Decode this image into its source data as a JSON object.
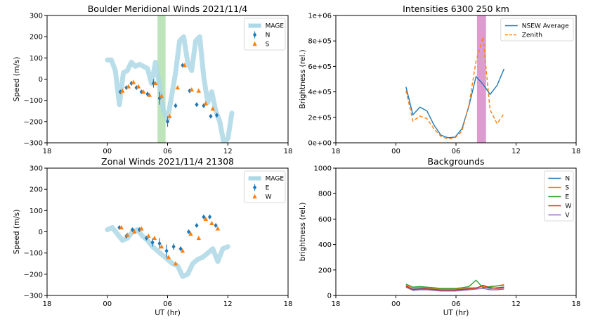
{
  "chart_data": [
    {
      "type": "line",
      "title": "Boulder Meridional Winds 2021/11/4",
      "xlabel": "",
      "ylabel": "Speed (m/s)",
      "xlim": [
        18,
        42
      ],
      "ylim": [
        -300,
        300
      ],
      "xticks": [
        18,
        24,
        30,
        36,
        42
      ],
      "xtick_labels": [
        "18",
        "00",
        "06",
        "12",
        "18"
      ],
      "yticks": [
        -300,
        -200,
        -100,
        0,
        100,
        200,
        300
      ],
      "ytick_labels": [
        "−300",
        "−200",
        "−100",
        "0",
        "100",
        "200",
        "300"
      ],
      "legend_position": "top-right",
      "shaded_span": {
        "x0": 29.0,
        "x1": 29.8,
        "color": "#b7e2b3"
      },
      "series": [
        {
          "name": "MAGE",
          "kind": "band",
          "color": "#add8e6",
          "x": [
            24.0,
            24.4,
            24.8,
            25.2,
            25.6,
            26.0,
            26.4,
            26.8,
            27.2,
            27.6,
            28.0,
            28.4,
            28.8,
            29.2,
            29.6,
            30.0,
            30.4,
            30.8,
            31.2,
            31.6,
            32.0,
            32.4,
            32.8,
            33.2,
            33.6,
            34.0,
            34.4,
            34.8,
            35.2,
            35.6,
            36.0,
            36.4
          ],
          "y": [
            90,
            90,
            40,
            -120,
            30,
            40,
            80,
            60,
            70,
            60,
            50,
            -20,
            80,
            -30,
            -150,
            -190,
            -80,
            30,
            180,
            200,
            80,
            40,
            180,
            200,
            10,
            -110,
            -60,
            -150,
            -200,
            -300,
            -280,
            -160
          ]
        },
        {
          "name": "N",
          "kind": "points",
          "marker": "diamond",
          "color": "#1f77b4",
          "x": [
            25.3,
            25.9,
            26.4,
            26.9,
            27.4,
            28.0,
            28.6,
            29.2,
            30.0,
            30.8,
            31.5,
            32.2,
            32.9,
            33.6,
            34.3,
            34.9
          ],
          "y": [
            -60,
            -40,
            -20,
            -40,
            -60,
            -70,
            -20,
            -90,
            -200,
            -125,
            65,
            -55,
            -120,
            -125,
            -175,
            -170
          ],
          "yerr": [
            8,
            8,
            8,
            8,
            8,
            10,
            20,
            30,
            25,
            10,
            8,
            8,
            8,
            8,
            8,
            8
          ]
        },
        {
          "name": "S",
          "kind": "points",
          "marker": "triangle",
          "color": "#ff7f0e",
          "x": [
            25.5,
            26.1,
            26.6,
            27.1,
            27.6,
            28.2,
            28.8,
            29.4,
            30.2,
            31.0,
            31.7,
            32.4,
            33.1,
            33.8,
            34.5
          ],
          "y": [
            -55,
            -35,
            -15,
            -35,
            -60,
            -75,
            -20,
            -80,
            -175,
            -40,
            65,
            -50,
            -55,
            -115,
            -140
          ]
        }
      ]
    },
    {
      "type": "line",
      "title": "Intensities 6300  250 km",
      "xlabel": "",
      "ylabel": "Brightness (rel.)",
      "xlim": [
        18,
        42
      ],
      "ylim": [
        0,
        1000000
      ],
      "xticks": [
        18,
        24,
        30,
        36,
        42
      ],
      "xtick_labels": [
        "18",
        "00",
        "06",
        "12",
        "18"
      ],
      "yticks": [
        0,
        200000,
        400000,
        600000,
        800000,
        1000000
      ],
      "ytick_labels": [
        "0e+00",
        "2e+05",
        "4e+05",
        "6e+05",
        "8e+05",
        "1e+06"
      ],
      "legend_position": "top-right",
      "shaded_span": {
        "x0": 32.1,
        "x1": 33.0,
        "color": "#d991cb"
      },
      "series": [
        {
          "name": "NSEW Average",
          "kind": "line",
          "color": "#1f77b4",
          "dash": "solid",
          "x": [
            25.0,
            25.7,
            26.4,
            27.1,
            27.8,
            28.5,
            29.2,
            29.9,
            30.6,
            31.3,
            32.0,
            32.7,
            33.4,
            34.1,
            34.8
          ],
          "y": [
            440000,
            220000,
            280000,
            250000,
            140000,
            60000,
            40000,
            45000,
            110000,
            290000,
            520000,
            460000,
            380000,
            450000,
            580000
          ]
        },
        {
          "name": "Zenith",
          "kind": "line",
          "color": "#ff7f0e",
          "dash": "dashed",
          "x": [
            25.0,
            25.7,
            26.4,
            27.1,
            27.8,
            28.5,
            29.2,
            29.9,
            30.6,
            31.3,
            32.0,
            32.7,
            33.4,
            34.1,
            34.8
          ],
          "y": [
            410000,
            170000,
            210000,
            190000,
            110000,
            50000,
            30000,
            40000,
            90000,
            300000,
            640000,
            830000,
            260000,
            150000,
            230000
          ]
        }
      ]
    },
    {
      "type": "line",
      "title": "Zonal Winds 2021/11/4 21308",
      "xlabel": "UT (hr)",
      "ylabel": "Speed (m/s)",
      "xlim": [
        18,
        42
      ],
      "ylim": [
        -300,
        300
      ],
      "xticks": [
        18,
        24,
        30,
        36,
        42
      ],
      "xtick_labels": [
        "18",
        "00",
        "06",
        "12",
        "18"
      ],
      "yticks": [
        -300,
        -200,
        -100,
        0,
        100,
        200,
        300
      ],
      "ytick_labels": [
        "−300",
        "−200",
        "−100",
        "0",
        "100",
        "200",
        "300"
      ],
      "legend_position": "top-right",
      "series": [
        {
          "name": "MAGE",
          "kind": "band",
          "color": "#add8e6",
          "x": [
            24.0,
            24.5,
            25.0,
            25.5,
            26.0,
            26.5,
            27.0,
            27.5,
            28.0,
            28.5,
            29.0,
            29.5,
            30.0,
            30.5,
            31.0,
            31.5,
            32.0,
            32.5,
            33.0,
            33.5,
            34.0,
            34.5,
            35.0,
            35.5,
            36.0
          ],
          "y": [
            10,
            20,
            -10,
            -40,
            -30,
            0,
            10,
            -20,
            -40,
            -70,
            -90,
            -110,
            -130,
            -150,
            -160,
            -210,
            -200,
            -150,
            -130,
            -120,
            -100,
            -80,
            -140,
            -80,
            -70
          ]
        },
        {
          "name": "E",
          "kind": "points",
          "marker": "diamond",
          "color": "#1f77b4",
          "x": [
            25.2,
            25.9,
            26.5,
            27.2,
            27.9,
            28.5,
            29.2,
            29.9,
            30.6,
            31.3,
            32.1,
            32.9,
            33.6,
            34.2,
            34.8
          ],
          "y": [
            20,
            -20,
            10,
            10,
            -30,
            -50,
            -55,
            -90,
            -70,
            -80,
            0,
            30,
            70,
            70,
            30
          ],
          "yerr": [
            8,
            10,
            10,
            10,
            10,
            20,
            25,
            30,
            15,
            10,
            8,
            8,
            8,
            8,
            8
          ]
        },
        {
          "name": "W",
          "kind": "points",
          "marker": "triangle",
          "color": "#ff7f0e",
          "x": [
            25.4,
            26.0,
            26.7,
            27.4,
            28.1,
            28.7,
            29.4,
            30.1,
            30.8,
            31.5,
            32.3,
            33.1,
            33.8,
            34.4,
            35.0
          ],
          "y": [
            20,
            -15,
            0,
            15,
            -20,
            -30,
            -70,
            -120,
            -150,
            -90,
            -10,
            -30,
            60,
            40,
            15
          ]
        }
      ]
    },
    {
      "type": "line",
      "title": "Backgrounds",
      "xlabel": "UT (hr)",
      "ylabel": "brightness (rel.)",
      "xlim": [
        18,
        42
      ],
      "ylim": [
        0,
        1000
      ],
      "xticks": [
        18,
        24,
        30,
        36,
        42
      ],
      "xtick_labels": [
        "18",
        "00",
        "06",
        "12",
        "18"
      ],
      "yticks": [
        0,
        200,
        400,
        600,
        800,
        1000
      ],
      "ytick_labels": [
        "0",
        "200",
        "400",
        "600",
        "800",
        "1000"
      ],
      "legend_position": "top-right",
      "series": [
        {
          "name": "N",
          "kind": "line",
          "color": "#1f77b4",
          "x": [
            25.0,
            25.7,
            26.4,
            27.1,
            27.8,
            28.5,
            29.2,
            29.9,
            30.6,
            31.3,
            32.0,
            32.7,
            33.4,
            34.1,
            34.8
          ],
          "y": [
            70,
            50,
            55,
            55,
            50,
            45,
            45,
            45,
            50,
            55,
            60,
            70,
            55,
            60,
            65
          ]
        },
        {
          "name": "S",
          "kind": "line",
          "color": "#ff7f0e",
          "x": [
            25.0,
            25.7,
            26.4,
            27.1,
            27.8,
            28.5,
            29.2,
            29.9,
            30.6,
            31.3,
            32.0,
            32.7,
            33.4,
            34.1,
            34.8
          ],
          "y": [
            80,
            60,
            65,
            60,
            55,
            50,
            50,
            50,
            55,
            60,
            60,
            70,
            65,
            75,
            85
          ]
        },
        {
          "name": "E",
          "kind": "line",
          "color": "#2ca02c",
          "x": [
            25.0,
            25.7,
            26.4,
            27.1,
            27.8,
            28.5,
            29.2,
            29.9,
            30.6,
            31.3,
            32.0,
            32.7,
            33.4,
            34.1,
            34.8
          ],
          "y": [
            90,
            65,
            70,
            65,
            60,
            55,
            55,
            55,
            60,
            70,
            120,
            60,
            70,
            75,
            80
          ]
        },
        {
          "name": "W",
          "kind": "line",
          "color": "#d62728",
          "x": [
            25.0,
            25.7,
            26.4,
            27.1,
            27.8,
            28.5,
            29.2,
            29.9,
            30.6,
            31.3,
            32.0,
            32.7,
            33.4,
            34.1,
            34.8
          ],
          "y": [
            75,
            45,
            50,
            50,
            45,
            40,
            40,
            40,
            45,
            50,
            55,
            80,
            60,
            55,
            60
          ]
        },
        {
          "name": "V",
          "kind": "line",
          "color": "#9467bd",
          "x": [
            25.0,
            25.7,
            26.4,
            27.1,
            27.8,
            28.5,
            29.2,
            29.9,
            30.6,
            31.3,
            32.0,
            32.7,
            33.4,
            34.1,
            34.8
          ],
          "y": [
            65,
            40,
            45,
            45,
            40,
            35,
            35,
            35,
            40,
            45,
            50,
            55,
            45,
            45,
            50
          ]
        }
      ]
    }
  ]
}
